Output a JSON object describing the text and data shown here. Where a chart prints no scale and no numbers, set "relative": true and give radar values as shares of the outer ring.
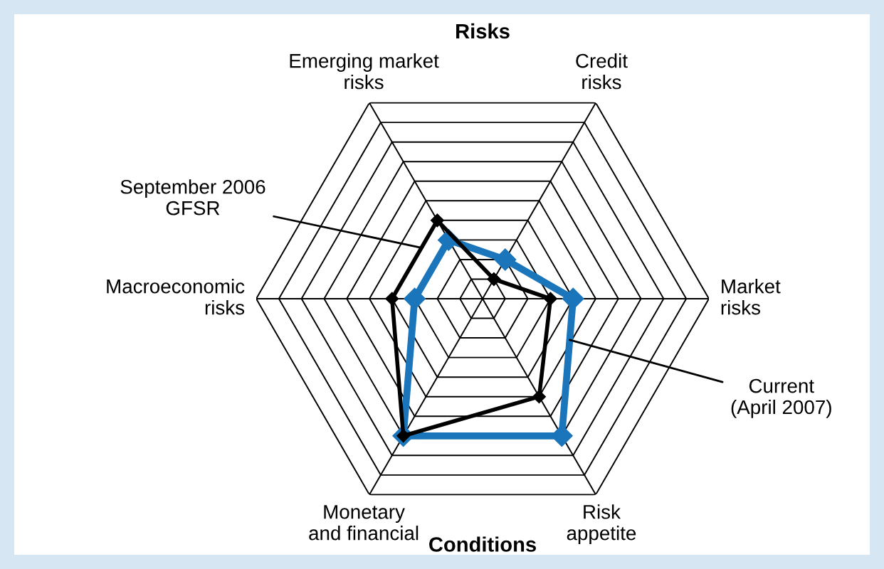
{
  "chart_data": {
    "type": "radar",
    "categories": [
      "Credit\nrisks",
      "Market\nrisks",
      "Risk\nappetite",
      "Monetary\nand financial",
      "Macroeconomic\nrisks",
      "Emerging market\nrisks"
    ],
    "series": [
      {
        "name": "Current\n(April 2007)",
        "color": "#1a75bb",
        "values": [
          0.2,
          0.4,
          0.7,
          0.7,
          0.3,
          0.3
        ]
      },
      {
        "name": "September 2006\nGFSR",
        "color": "#000000",
        "values": [
          0.1,
          0.3,
          0.5,
          0.7,
          0.4,
          0.4
        ]
      }
    ],
    "relative": true,
    "marker": "diamond",
    "grid": true,
    "annotations": [
      "Risks",
      "Conditions"
    ]
  }
}
